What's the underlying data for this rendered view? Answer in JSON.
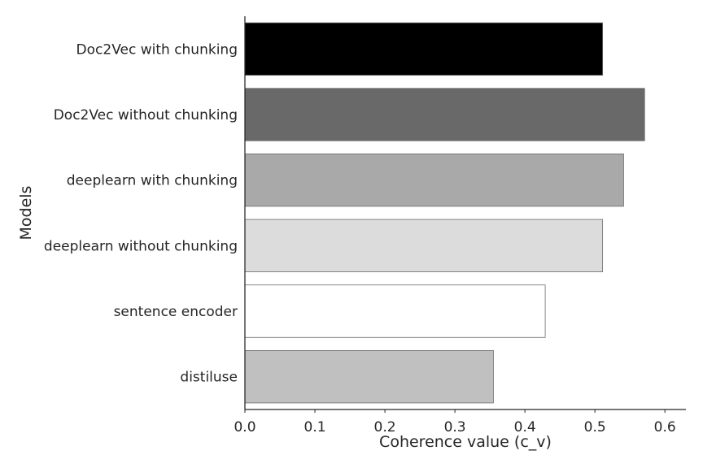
{
  "chart_data": {
    "type": "bar",
    "orientation": "horizontal",
    "categories": [
      "Doc2Vec with chunking",
      "Doc2Vec without chunking",
      "deeplearn with chunking",
      "deeplearn without chunking",
      "sentence encoder",
      "distiluse"
    ],
    "values": [
      0.511,
      0.571,
      0.541,
      0.511,
      0.429,
      0.355
    ],
    "colors": [
      "#000000",
      "#696969",
      "#a9a9a9",
      "#dcdcdc",
      "#ffffff",
      "#c0c0c0"
    ],
    "xlabel": "Coherence value (c_v)",
    "ylabel": "Models",
    "xlim": [
      0,
      0.63
    ],
    "xticks": [
      0.0,
      0.1,
      0.2,
      0.3,
      0.4,
      0.5,
      0.6
    ],
    "xtick_labels": [
      "0.0",
      "0.1",
      "0.2",
      "0.3",
      "0.4",
      "0.5",
      "0.6"
    ],
    "grid": false,
    "legend": "none"
  }
}
